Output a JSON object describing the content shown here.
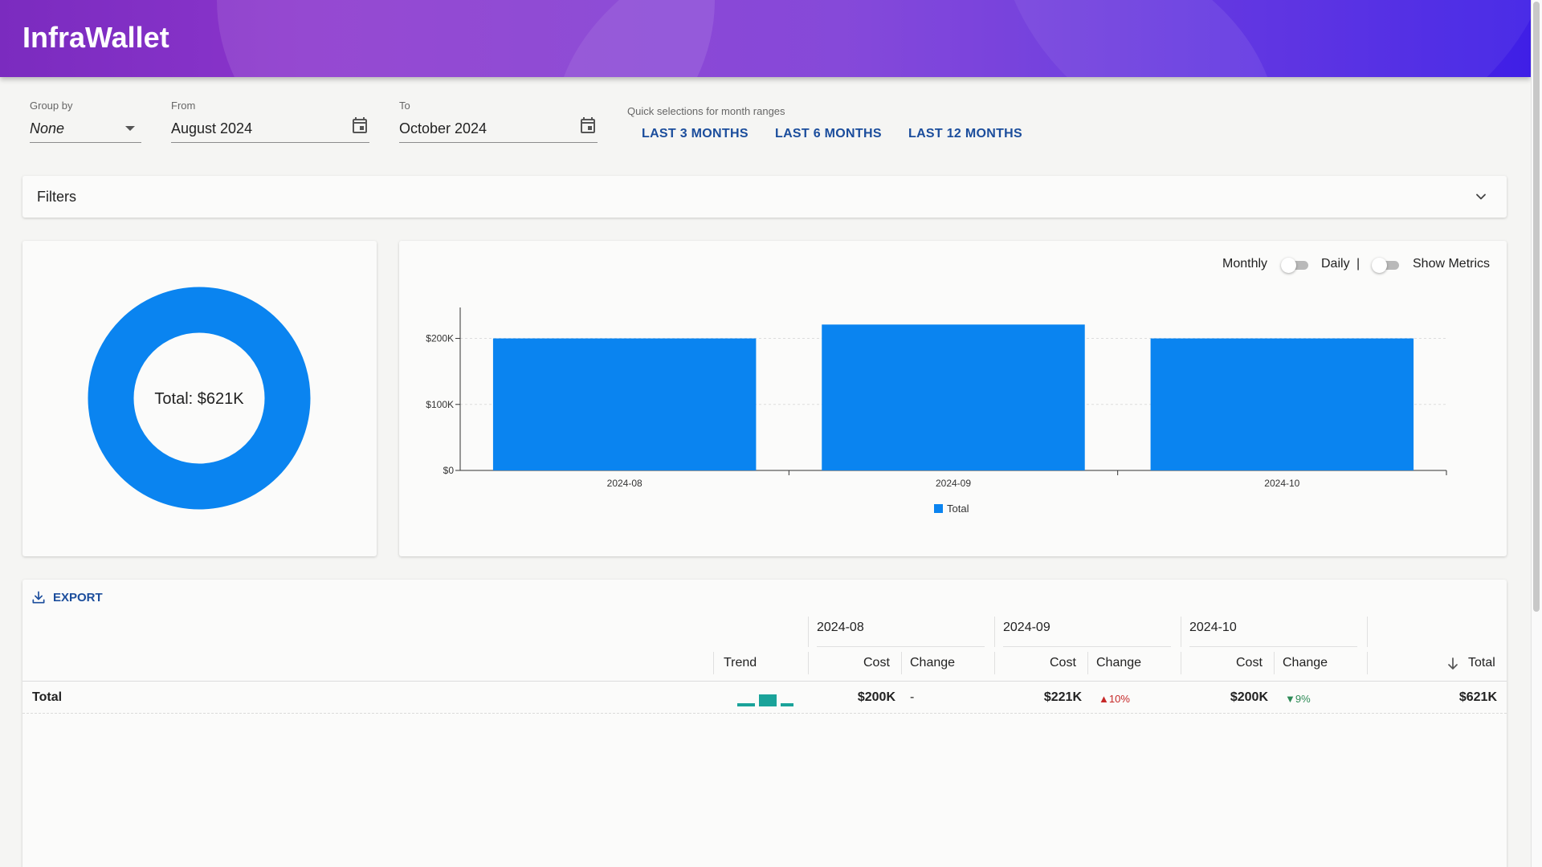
{
  "app": {
    "title": "InfraWallet"
  },
  "controls": {
    "group_by": {
      "label": "Group by",
      "value": "None"
    },
    "from": {
      "label": "From",
      "value": "August 2024"
    },
    "to": {
      "label": "To",
      "value": "October 2024"
    },
    "quick": {
      "label": "Quick selections for month ranges",
      "buttons": [
        "LAST 3 MONTHS",
        "LAST 6 MONTHS",
        "LAST 12 MONTHS"
      ]
    }
  },
  "filters": {
    "label": "Filters"
  },
  "donut": {
    "label": "Total: $621K",
    "color": "#0a84f0"
  },
  "toggles": {
    "monthly": "Monthly",
    "daily": "Daily",
    "divider": "|",
    "metrics": "Show Metrics"
  },
  "chart_data": {
    "type": "bar",
    "categories": [
      "2024-08",
      "2024-09",
      "2024-10"
    ],
    "series": [
      {
        "name": "Total",
        "values": [
          200,
          221,
          200
        ],
        "color": "#0a84f0"
      }
    ],
    "yticks": [
      "$0",
      "$100K",
      "$200K"
    ],
    "ylim": [
      0,
      225
    ],
    "unit": "K",
    "legend": "bottom-center"
  },
  "table": {
    "export_label": "EXPORT",
    "months": [
      "2024-08",
      "2024-09",
      "2024-10"
    ],
    "headers": {
      "trend": "Trend",
      "cost": "Cost",
      "change": "Change",
      "total": "Total"
    },
    "row": {
      "name": "Total",
      "trend_color": "#1aa39a",
      "trend_values": [
        200,
        221,
        200
      ],
      "costs": [
        "$200K",
        "$221K",
        "$200K"
      ],
      "changes": [
        {
          "text": "-",
          "dir": "none"
        },
        {
          "text": "10%",
          "dir": "up"
        },
        {
          "text": "9%",
          "dir": "down"
        }
      ],
      "total": "$621K"
    }
  }
}
